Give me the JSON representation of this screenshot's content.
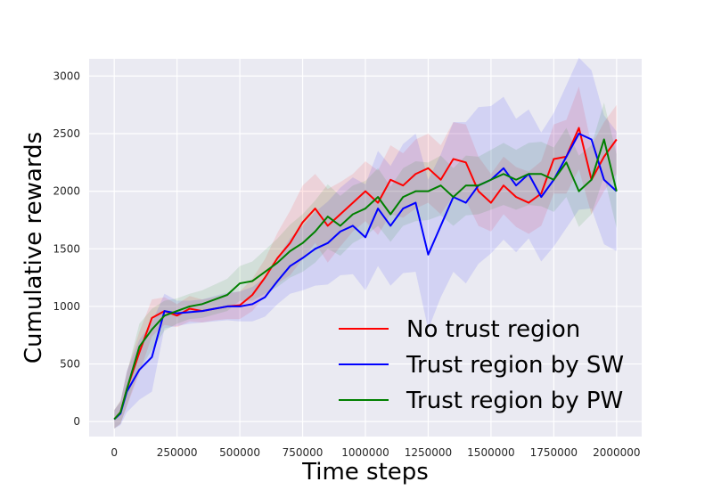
{
  "chart_data": {
    "type": "line",
    "title": "",
    "xlabel": "Time steps",
    "ylabel": "Cumulative rewards",
    "xlim": [
      -100000,
      2100000
    ],
    "ylim": [
      -130,
      3150
    ],
    "x_ticks": [
      0,
      250000,
      500000,
      750000,
      1000000,
      1250000,
      1500000,
      1750000,
      2000000
    ],
    "x_tick_labels": [
      "0",
      "250000",
      "500000",
      "750000",
      "1000000",
      "1250000",
      "1500000",
      "1750000",
      "2000000"
    ],
    "y_ticks": [
      0,
      500,
      1000,
      1500,
      2000,
      2500,
      3000
    ],
    "y_tick_labels": [
      "0",
      "500",
      "1000",
      "1500",
      "2000",
      "2500",
      "3000"
    ],
    "grid": true,
    "background": "#eaeaf2",
    "legend_position": "lower-right",
    "series": [
      {
        "name": "No trust region",
        "color": "#ff0000",
        "x": [
          0,
          25000,
          50000,
          100000,
          150000,
          200000,
          250000,
          300000,
          350000,
          400000,
          450000,
          500000,
          550000,
          600000,
          650000,
          700000,
          750000,
          800000,
          850000,
          900000,
          950000,
          1000000,
          1050000,
          1100000,
          1150000,
          1200000,
          1250000,
          1300000,
          1350000,
          1400000,
          1450000,
          1500000,
          1550000,
          1600000,
          1650000,
          1700000,
          1750000,
          1800000,
          1850000,
          1900000,
          1950000,
          2000000
        ],
        "y": [
          20,
          80,
          280,
          600,
          900,
          960,
          920,
          980,
          960,
          980,
          1000,
          1010,
          1100,
          1250,
          1420,
          1550,
          1730,
          1850,
          1700,
          1800,
          1900,
          2000,
          1900,
          2100,
          2050,
          2150,
          2200,
          2100,
          2280,
          2250,
          2000,
          1900,
          2050,
          1950,
          1900,
          1980,
          2280,
          2300,
          2550,
          2100,
          2300,
          2450
        ],
        "band": [
          80,
          100,
          150,
          180,
          160,
          120,
          100,
          110,
          100,
          100,
          110,
          120,
          140,
          160,
          220,
          280,
          320,
          300,
          320,
          280,
          250,
          260,
          280,
          300,
          280,
          300,
          300,
          300,
          320,
          330,
          300,
          250,
          250,
          260,
          270,
          280,
          300,
          320,
          360,
          300,
          300,
          300
        ]
      },
      {
        "name": "Trust region by SW",
        "color": "#0000ff",
        "x": [
          0,
          25000,
          50000,
          100000,
          150000,
          200000,
          250000,
          300000,
          350000,
          400000,
          450000,
          500000,
          550000,
          600000,
          650000,
          700000,
          750000,
          800000,
          850000,
          900000,
          950000,
          1000000,
          1050000,
          1100000,
          1150000,
          1200000,
          1250000,
          1300000,
          1350000,
          1400000,
          1450000,
          1500000,
          1550000,
          1600000,
          1650000,
          1700000,
          1750000,
          1800000,
          1850000,
          1900000,
          1950000,
          2000000
        ],
        "y": [
          20,
          70,
          260,
          450,
          560,
          960,
          940,
          950,
          960,
          980,
          1000,
          1000,
          1020,
          1080,
          1220,
          1350,
          1420,
          1500,
          1550,
          1650,
          1700,
          1600,
          1850,
          1700,
          1850,
          1900,
          1450,
          1700,
          1950,
          1900,
          2050,
          2100,
          2200,
          2050,
          2150,
          1950,
          2100,
          2300,
          2500,
          2450,
          2100,
          2000
        ],
        "band": [
          80,
          100,
          180,
          260,
          300,
          150,
          110,
          100,
          100,
          110,
          120,
          130,
          150,
          170,
          200,
          240,
          280,
          320,
          360,
          380,
          420,
          460,
          500,
          520,
          560,
          600,
          650,
          620,
          650,
          700,
          680,
          640,
          620,
          580,
          560,
          560,
          580,
          620,
          660,
          600,
          560,
          520
        ]
      },
      {
        "name": "Trust region by PW",
        "color": "#008000",
        "x": [
          0,
          25000,
          50000,
          100000,
          150000,
          200000,
          250000,
          300000,
          350000,
          400000,
          450000,
          500000,
          550000,
          600000,
          650000,
          700000,
          750000,
          800000,
          850000,
          900000,
          950000,
          1000000,
          1050000,
          1100000,
          1150000,
          1200000,
          1250000,
          1300000,
          1350000,
          1400000,
          1450000,
          1500000,
          1550000,
          1600000,
          1650000,
          1700000,
          1750000,
          1800000,
          1850000,
          1900000,
          1950000,
          2000000
        ],
        "y": [
          20,
          80,
          280,
          650,
          800,
          920,
          960,
          1000,
          1020,
          1060,
          1100,
          1200,
          1220,
          1300,
          1380,
          1480,
          1550,
          1650,
          1780,
          1700,
          1800,
          1850,
          1950,
          1800,
          1950,
          2000,
          2000,
          2050,
          1950,
          2050,
          2050,
          2100,
          2150,
          2100,
          2150,
          2150,
          2100,
          2250,
          2000,
          2100,
          2450,
          2000
        ],
        "band": [
          80,
          100,
          140,
          200,
          180,
          130,
          110,
          110,
          120,
          130,
          140,
          150,
          170,
          190,
          210,
          230,
          250,
          270,
          280,
          260,
          250,
          240,
          250,
          240,
          250,
          260,
          250,
          260,
          250,
          260,
          250,
          260,
          270,
          260,
          270,
          280,
          280,
          300,
          310,
          300,
          320,
          320
        ]
      }
    ]
  }
}
